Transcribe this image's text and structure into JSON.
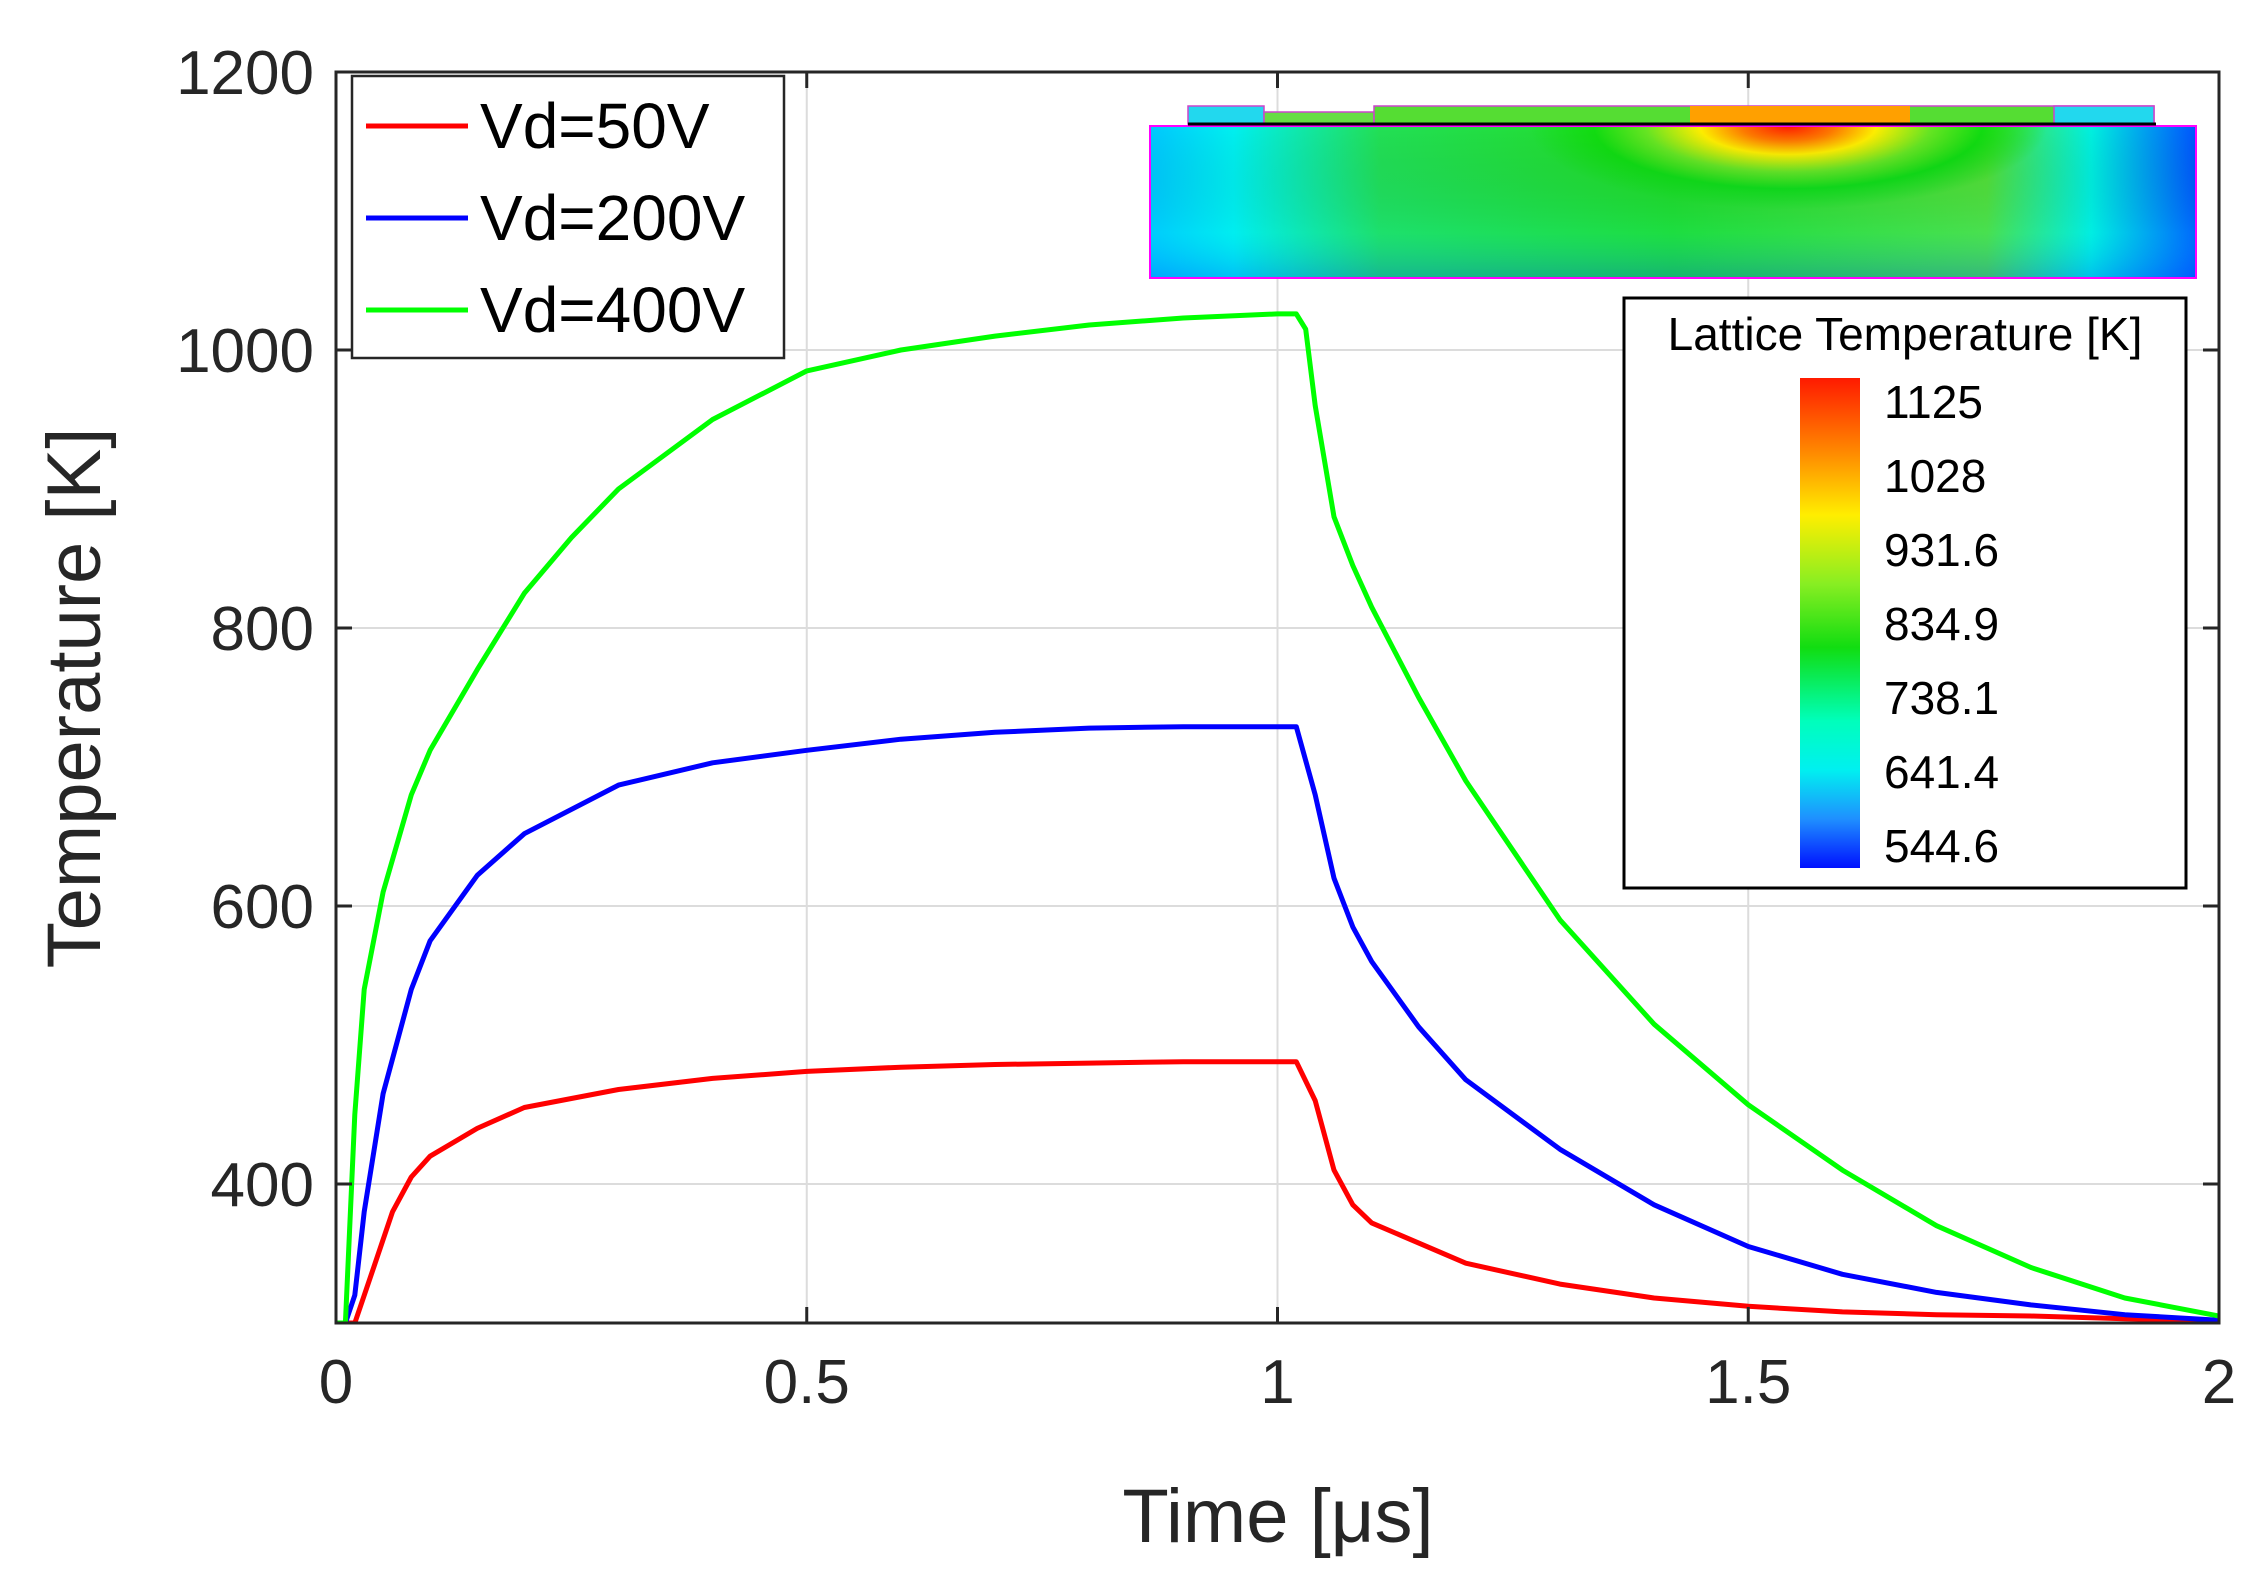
{
  "chart_data": {
    "type": "line",
    "title": "",
    "xlabel": "Time [μs]",
    "ylabel": "Temperature [K]",
    "xlim": [
      0,
      2
    ],
    "ylim": [
      300,
      1200
    ],
    "xticks": [
      0,
      0.5,
      1,
      1.5,
      2
    ],
    "xtick_labels": [
      "0",
      "0.5",
      "1",
      "1.5",
      "2"
    ],
    "yticks": [
      400,
      600,
      800,
      1000,
      1200
    ],
    "ytick_labels": [
      "400",
      "600",
      "800",
      "1000",
      "1200"
    ],
    "grid": true,
    "legend_position": "top-left",
    "series": [
      {
        "name": "Vd=50V",
        "color": "#ff0000",
        "x": [
          0,
          0.02,
          0.04,
          0.06,
          0.08,
          0.1,
          0.15,
          0.2,
          0.3,
          0.4,
          0.5,
          0.6,
          0.7,
          0.8,
          0.9,
          1.0,
          1.02,
          1.04,
          1.06,
          1.08,
          1.1,
          1.2,
          1.3,
          1.4,
          1.5,
          1.6,
          1.7,
          1.8,
          1.9,
          2.0
        ],
        "y": [
          300,
          300,
          340,
          380,
          405,
          420,
          440,
          455,
          468,
          476,
          481,
          484,
          486,
          487,
          488,
          488,
          488,
          460,
          410,
          385,
          372,
          343,
          328,
          318,
          312,
          308,
          306,
          305,
          303,
          302
        ]
      },
      {
        "name": "Vd=200V",
        "color": "#0000ff",
        "x": [
          0,
          0.01,
          0.02,
          0.03,
          0.05,
          0.08,
          0.1,
          0.15,
          0.2,
          0.3,
          0.4,
          0.5,
          0.6,
          0.7,
          0.8,
          0.9,
          1.0,
          1.02,
          1.04,
          1.06,
          1.08,
          1.1,
          1.15,
          1.2,
          1.3,
          1.4,
          1.5,
          1.6,
          1.7,
          1.8,
          1.9,
          2.0
        ],
        "y": [
          300,
          300,
          320,
          380,
          465,
          540,
          575,
          622,
          652,
          687,
          703,
          712,
          720,
          725,
          728,
          729,
          729,
          729,
          680,
          620,
          585,
          560,
          513,
          475,
          425,
          385,
          355,
          335,
          322,
          313,
          306,
          302
        ]
      },
      {
        "name": "Vd=400V",
        "color": "#00ff00",
        "x": [
          0,
          0.01,
          0.02,
          0.03,
          0.05,
          0.08,
          0.1,
          0.15,
          0.2,
          0.25,
          0.3,
          0.4,
          0.5,
          0.6,
          0.7,
          0.8,
          0.9,
          1.0,
          1.02,
          1.03,
          1.04,
          1.06,
          1.08,
          1.1,
          1.15,
          1.2,
          1.3,
          1.4,
          1.5,
          1.6,
          1.7,
          1.8,
          1.9,
          2.0
        ],
        "y": [
          300,
          300,
          450,
          540,
          610,
          680,
          712,
          770,
          825,
          865,
          900,
          950,
          985,
          1000,
          1010,
          1018,
          1023,
          1026,
          1026,
          1015,
          960,
          880,
          845,
          815,
          750,
          690,
          590,
          515,
          457,
          410,
          370,
          340,
          318,
          305
        ]
      }
    ],
    "inset": {
      "colorbar_title": "Lattice Temperature [K]",
      "colorbar_labels": [
        "1125",
        "1028",
        "931.6",
        "834.9",
        "738.1",
        "641.4",
        "544.6"
      ],
      "colorbar_range": [
        544.6,
        1125
      ]
    }
  }
}
